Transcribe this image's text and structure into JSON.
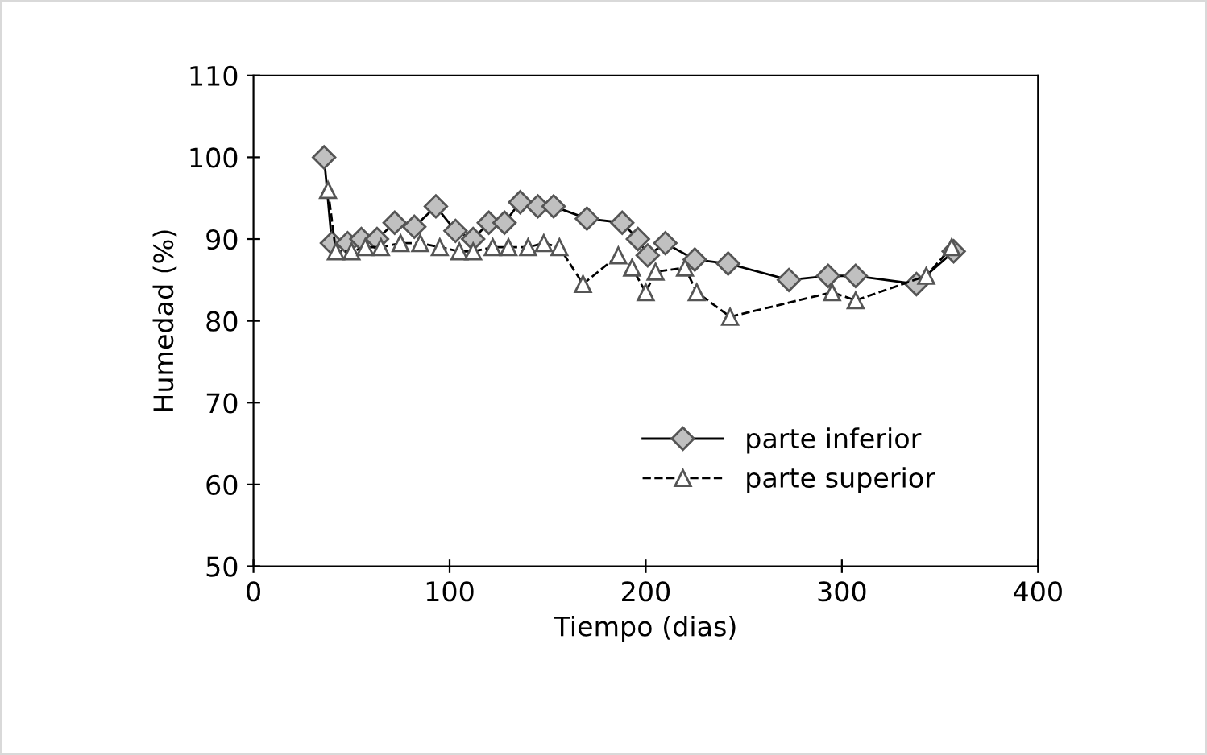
{
  "chart_data": {
    "type": "line",
    "xlabel": "Tiempo (dias)",
    "ylabel": "Humedad (%)",
    "xlim": [
      0,
      400
    ],
    "xticks": [
      0,
      100,
      200,
      300,
      400
    ],
    "ylim": [
      50,
      110
    ],
    "yticks": [
      50,
      60,
      70,
      80,
      90,
      100,
      110
    ],
    "grid": false,
    "legend": "bottom right",
    "series": [
      {
        "name": "parte inferior",
        "color": "#c0c0c0",
        "marker": "diamond",
        "line_style": "solid",
        "x": [
          36,
          40,
          48,
          55,
          63,
          72,
          82,
          93,
          103,
          112,
          120,
          128,
          136,
          145,
          153,
          170,
          188,
          196,
          201,
          210,
          225,
          242,
          273,
          293,
          307,
          338,
          357
        ],
        "values": [
          100,
          89.5,
          89.5,
          90,
          90,
          92,
          91.5,
          94,
          91,
          90,
          92,
          92,
          94.5,
          94,
          94,
          92.5,
          92,
          90,
          88,
          89.5,
          87.5,
          87,
          85,
          85.5,
          85.5,
          84.5,
          88.5
        ]
      },
      {
        "name": "parte superior",
        "color": "#ffffff",
        "marker": "triangle",
        "line_style": "dashed",
        "x": [
          38,
          42,
          50,
          57,
          65,
          75,
          85,
          95,
          105,
          112,
          122,
          130,
          140,
          148,
          156,
          168,
          186,
          193,
          200,
          205,
          220,
          226,
          243,
          295,
          307,
          343,
          356
        ],
        "values": [
          96,
          88.5,
          88.5,
          89,
          89,
          89.5,
          89.5,
          89,
          88.5,
          88.5,
          89,
          89,
          89,
          89.5,
          89,
          84.5,
          88,
          86.5,
          83.5,
          86,
          86.5,
          83.5,
          80.5,
          83.5,
          82.5,
          85.5,
          89
        ]
      }
    ]
  }
}
